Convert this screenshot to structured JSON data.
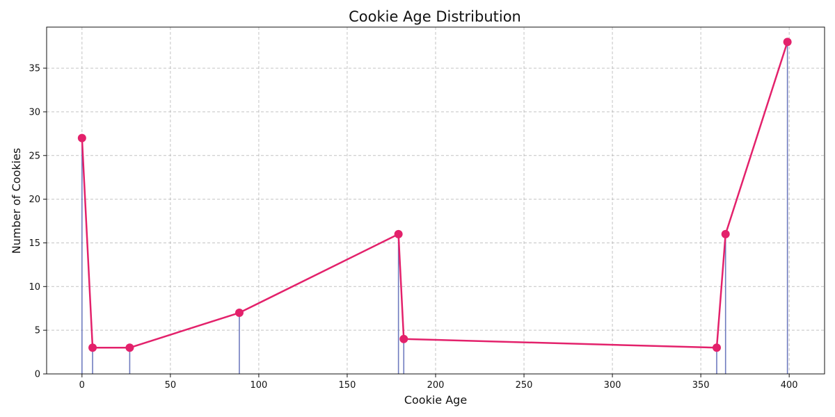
{
  "chart_data": {
    "type": "line",
    "title": "Cookie Age Distribution",
    "xlabel": "Cookie Age",
    "ylabel": "Number of Cookies",
    "xlim": [
      -20,
      420
    ],
    "ylim": [
      0,
      39.7
    ],
    "xticks": [
      0,
      50,
      100,
      150,
      200,
      250,
      300,
      350,
      400
    ],
    "yticks": [
      0,
      5,
      10,
      15,
      20,
      25,
      30,
      35
    ],
    "grid": true,
    "stems": true,
    "series": [
      {
        "x": [
          0,
          6,
          27,
          89,
          179,
          182,
          359,
          364,
          399
        ],
        "y": [
          27,
          3,
          3,
          7,
          16,
          4,
          3,
          16,
          38
        ]
      }
    ],
    "colors": {
      "line": "#e3216b",
      "marker": "#e3216b",
      "stem": "#6f7bbf"
    }
  }
}
